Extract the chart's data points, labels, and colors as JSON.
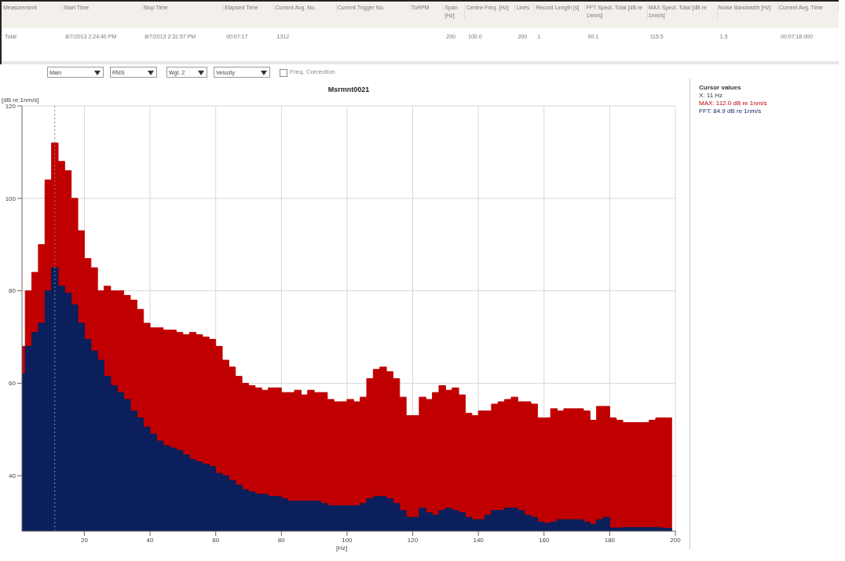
{
  "chart_data": {
    "type": "area",
    "title": "Msrmnt0021",
    "xlabel": "[Hz]",
    "ylabel": "[dB re 1nm/s]",
    "annotations": [
      "Measurement",
      "Start Time",
      "Stop Time",
      "Elapsed Time",
      "Current Avg. No.",
      "Current Trigger No.",
      "ToRPM",
      "Span [Hz]",
      "Centre Freq. [Hz]",
      "Lines",
      "Record Length [s]",
      "FFT Spect. Total [dB re 1nm/s]",
      "MAX Spect. Total [dB re 1nm/s]",
      "Noise Bandwidth [Hz]",
      "Current Avg. Time",
      "Total",
      "8/7/2013 2:24:40 PM",
      "8/7/2013 2:31:57 PM",
      "00:07:17",
      "1312",
      "200",
      "100.0",
      "200",
      "1",
      "90.1",
      "115.5",
      "1.5",
      "00:07:18.000",
      "Main",
      "RMS",
      "Wgt. 2",
      "Velocity",
      "Freq. Correction",
      "Cursor values",
      "X: 11 Hz",
      "MAX: 112.0 dB re 1nm/s",
      "FFT: 84.9 dB re 1nm/s"
    ],
    "x": [
      1,
      3,
      5,
      7,
      9,
      11,
      13,
      15,
      17,
      19,
      21,
      23,
      25,
      27,
      29,
      31,
      33,
      35,
      37,
      39,
      41,
      43,
      45,
      47,
      49,
      51,
      53,
      55,
      57,
      59,
      61,
      63,
      65,
      67,
      69,
      71,
      73,
      75,
      77,
      79,
      81,
      83,
      85,
      87,
      89,
      91,
      93,
      95,
      97,
      99,
      101,
      103,
      105,
      107,
      109,
      111,
      113,
      115,
      117,
      119,
      121,
      123,
      125,
      127,
      129,
      131,
      133,
      135,
      137,
      139,
      141,
      143,
      145,
      147,
      149,
      151,
      153,
      155,
      157,
      159,
      161,
      163,
      165,
      167,
      169,
      171,
      173,
      175,
      177,
      179,
      181,
      183,
      185,
      187,
      189,
      191,
      193,
      195,
      197,
      199
    ],
    "series": [
      {
        "color": "#c00000",
        "values": [
          68,
          80,
          84,
          90,
          104,
          112,
          108,
          106,
          100,
          93,
          87,
          85,
          80,
          81,
          80,
          80,
          79,
          78,
          76,
          73,
          72,
          72,
          71.5,
          71.5,
          71,
          70.5,
          71,
          70.5,
          70,
          69.5,
          68,
          65,
          63.5,
          61.5,
          60,
          59.5,
          59,
          58.5,
          59,
          59,
          58,
          58,
          58.5,
          57.5,
          58.5,
          58,
          58,
          56.5,
          56,
          56,
          56.5,
          56,
          57,
          61,
          63,
          63.5,
          62.5,
          61,
          57,
          53,
          53,
          57,
          56.5,
          58,
          59.5,
          58.5,
          59,
          57.5,
          53.5,
          53,
          54,
          54,
          55.5,
          56,
          56.5,
          57,
          56,
          56,
          55.5,
          52.5,
          52.5,
          54.5,
          54,
          54.5,
          54.5,
          54.5,
          54,
          52,
          55,
          55,
          52.5,
          52,
          51.5,
          51.5,
          51.5,
          51.5,
          52,
          52.5,
          52.5,
          52.5
        ]
      },
      {
        "color": "#0a1f5c",
        "values": [
          62,
          68,
          71,
          73,
          80,
          85,
          81,
          79.5,
          77,
          73,
          69.5,
          67,
          65,
          61.5,
          59.5,
          58,
          56.5,
          54,
          52.5,
          50.5,
          49,
          47.5,
          46.5,
          46,
          45.5,
          44.5,
          43.5,
          43,
          42.5,
          42,
          40.5,
          40,
          39,
          38,
          37,
          36.5,
          36,
          36,
          35.5,
          35.5,
          35,
          34.5,
          34.5,
          34.5,
          34.5,
          34.5,
          34,
          33.5,
          33.5,
          33.5,
          33.5,
          33.5,
          34,
          35,
          35.5,
          35.5,
          35,
          34,
          32.5,
          31,
          31,
          33,
          32,
          31.5,
          32.5,
          33,
          32.5,
          32,
          31,
          30.5,
          30.5,
          31.5,
          32.5,
          32.5,
          33,
          33,
          32.5,
          31.5,
          31,
          30,
          29.7,
          30,
          30.5,
          30.5,
          30.5,
          30.5,
          30,
          29.5,
          30.5,
          31,
          28.7,
          28.7,
          28.8,
          28.8,
          28.8,
          28.8,
          28.8,
          28.8,
          28.6,
          28.6
        ]
      }
    ],
    "xlim": [
      1,
      200
    ],
    "xticks": [
      20,
      40,
      60,
      80,
      100,
      120,
      140,
      160,
      180,
      200
    ],
    "ylim": [
      28,
      120
    ],
    "yticks": [
      40,
      60,
      80,
      100,
      120
    ],
    "ref_lines": [
      {
        "axis": "x",
        "value": 11,
        "color": "#888888",
        "line_style": "dotted"
      }
    ],
    "grid": true
  }
}
